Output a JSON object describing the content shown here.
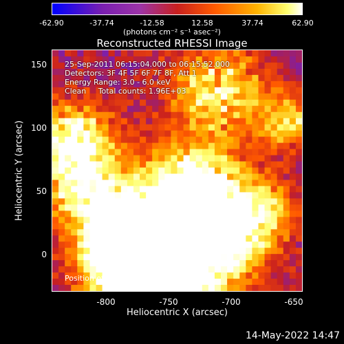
{
  "colorbar": {
    "ticks": [
      "-62.90",
      "-37.74",
      "-12.58",
      "12.58",
      "37.74",
      "62.90"
    ],
    "units": "(photons cm⁻² s⁻¹ asec⁻²)"
  },
  "title": "Reconstructed RHESSI Image",
  "info": {
    "time_range": "25-Sep-2011 06:15:04.000 to 06:15:52.000",
    "detectors": "Detectors: 3F 4F 5F 6F 7F 8F, Att 1",
    "energy": "Energy Range: 3.0 - 6.0 keV",
    "clean": "Clean     Total counts: 1.96E+03",
    "peak": "Position of Peak = [-745,22]"
  },
  "axes": {
    "xlabel": "Heliocentric X (arcsec)",
    "ylabel": "Heliocentric Y (arcsec)",
    "xticks": [
      "-800",
      "-750",
      "-700",
      "-650"
    ],
    "yticks": [
      "150",
      "100",
      "50",
      "0"
    ]
  },
  "timestamp": "14-May-2022 14:47",
  "chart_data": {
    "type": "heatmap",
    "title": "Reconstructed RHESSI Image",
    "xlabel": "Heliocentric X (arcsec)",
    "ylabel": "Heliocentric Y (arcsec)",
    "xlim": [
      -843,
      -645
    ],
    "ylim": [
      -20,
      160
    ],
    "clim": [
      -62.9,
      62.9
    ],
    "colormap": [
      "#0000ff",
      "#7a1fb0",
      "#c8201f",
      "#ff5a00",
      "#ffb400",
      "#ffff70",
      "#ffffff"
    ],
    "peak_position": [
      -745,
      22
    ]
  }
}
